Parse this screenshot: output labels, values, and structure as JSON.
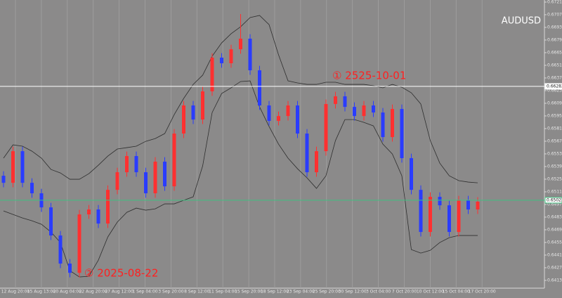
{
  "chart_data": {
    "type": "candlestick",
    "title": "AUDUSD",
    "up_color": "#ff3030",
    "down_color": "#2a3cff",
    "band_color": "#2e2e2e",
    "grid": true,
    "ylim": [
      0.64049,
      0.67238
    ],
    "yticks": [
      0.67215,
      0.67075,
      0.66935,
      0.66795,
      0.66655,
      0.66515,
      0.66375,
      0.66235,
      0.66095,
      0.65955,
      0.65815,
      0.65675,
      0.65535,
      0.65395,
      0.65255,
      0.65115,
      0.64975,
      0.64835,
      0.64695,
      0.64555,
      0.64415,
      0.64275,
      0.64135
    ],
    "x_labels": [
      "12 Aug 20:00",
      "15 Aug 13:00",
      "20 Aug 04:00",
      "22 Aug 20:00",
      "27 Aug 12:00",
      "1 Sep 04:00",
      "3 Sep 20:00",
      "8 Sep 12:00",
      "11 Sep 04:00",
      "15 Sep 20:00",
      "18 Sep 12:00",
      "23 Sep 04:00",
      "25 Sep 20:00",
      "30 Sep 12:00",
      "3 Oct 04:00",
      "7 Oct 20:00",
      "10 Oct 12:00",
      "15 Oct 04:00",
      "17 Oct 20:00"
    ],
    "open": [
      0.65293,
      0.65215,
      0.65565,
      0.65215,
      0.65099,
      0.64943,
      0.64632,
      0.64321,
      0.64219,
      0.64865,
      0.6492,
      0.64764,
      0.65137,
      0.65332,
      0.65511,
      0.65332,
      0.65099,
      0.65449,
      0.65176,
      0.6576,
      0.66071,
      0.65915,
      0.66227,
      0.666,
      0.66538,
      0.66693,
      0.6681,
      0.6646,
      0.66071,
      0.659,
      0.65954,
      0.66071,
      0.6576,
      0.65332,
      0.65565,
      0.66087,
      0.66172,
      0.66055,
      0.65954,
      0.66071,
      0.65993,
      0.65721,
      0.66032,
      0.65488,
      0.65137,
      0.64671,
      0.6506,
      0.64966,
      0.64671,
      0.65021,
      0.6492
    ],
    "high": [
      0.65343,
      0.65615,
      0.65615,
      0.65265,
      0.65149,
      0.64993,
      0.64682,
      0.64371,
      0.64915,
      0.6497,
      0.6497,
      0.65187,
      0.65382,
      0.65561,
      0.65561,
      0.65382,
      0.65499,
      0.65499,
      0.6581,
      0.66121,
      0.66121,
      0.66277,
      0.6665,
      0.6665,
      0.66743,
      0.67082,
      0.6686,
      0.6651,
      0.66121,
      0.66004,
      0.66121,
      0.66121,
      0.6581,
      0.65615,
      0.66137,
      0.66222,
      0.66222,
      0.66105,
      0.66121,
      0.66121,
      0.66043,
      0.66082,
      0.66082,
      0.65538,
      0.65187,
      0.6511,
      0.6511,
      0.65016,
      0.65071,
      0.65071,
      0.65056
    ],
    "low": [
      0.65165,
      0.65165,
      0.65165,
      0.65049,
      0.64893,
      0.64582,
      0.64271,
      0.64169,
      0.64169,
      0.64815,
      0.64714,
      0.64714,
      0.65087,
      0.65282,
      0.65282,
      0.65049,
      0.65049,
      0.65126,
      0.65126,
      0.6571,
      0.65865,
      0.65865,
      0.66177,
      0.66488,
      0.66488,
      0.66643,
      0.6641,
      0.66021,
      0.6585,
      0.6585,
      0.65904,
      0.6571,
      0.65282,
      0.65282,
      0.65515,
      0.66037,
      0.66005,
      0.65904,
      0.65904,
      0.65943,
      0.65671,
      0.65671,
      0.65438,
      0.65087,
      0.64621,
      0.64621,
      0.64916,
      0.64621,
      0.64621,
      0.6487,
      0.6487
    ],
    "close": [
      0.65215,
      0.65565,
      0.65215,
      0.65099,
      0.64943,
      0.64632,
      0.64321,
      0.64219,
      0.64865,
      0.6492,
      0.64764,
      0.65137,
      0.65332,
      0.65511,
      0.65332,
      0.65099,
      0.65449,
      0.65176,
      0.6576,
      0.66071,
      0.65915,
      0.66227,
      0.666,
      0.66538,
      0.66693,
      0.6681,
      0.6646,
      0.66071,
      0.659,
      0.65954,
      0.66071,
      0.6576,
      0.65332,
      0.65565,
      0.66087,
      0.66172,
      0.66055,
      0.65954,
      0.66071,
      0.65993,
      0.65721,
      0.66032,
      0.65488,
      0.65137,
      0.64671,
      0.6506,
      0.64966,
      0.64671,
      0.65021,
      0.6492,
      0.65006
    ],
    "bands": [
      {
        "values": [
          0.65488,
          0.65635,
          0.6562,
          0.65565,
          0.65488,
          0.65363,
          0.65324,
          0.65254,
          0.65254,
          0.65316,
          0.6541,
          0.65511,
          0.65589,
          0.65604,
          0.6562,
          0.65674,
          0.65705,
          0.6576,
          0.6597,
          0.66149,
          0.66304,
          0.66406,
          0.66616,
          0.66763,
          0.66865,
          0.66942,
          0.67044,
          0.67067,
          0.66966,
          0.66631,
          0.66343,
          0.6632,
          0.66304,
          0.66304,
          0.66328,
          0.66328,
          0.66304,
          0.66304,
          0.66304,
          0.66289,
          0.66266,
          0.66304,
          0.66273,
          0.66211,
          0.66087,
          0.65682,
          0.65433,
          0.65293,
          0.65239,
          0.65223,
          0.65215
        ]
      },
      {
        "values": [
          0.64904,
          0.64865,
          0.64826,
          0.64795,
          0.64756,
          0.64671,
          0.64554,
          0.64243,
          0.64173,
          0.6418,
          0.64359,
          0.64616,
          0.6478,
          0.64888,
          0.64935,
          0.64912,
          0.64927,
          0.64982,
          0.64982,
          0.65021,
          0.6506,
          0.65402,
          0.65993,
          0.66203,
          0.66266,
          0.66336,
          0.66343,
          0.66055,
          0.65838,
          0.65643,
          0.65488,
          0.65371,
          0.6527,
          0.65153,
          0.65293,
          0.65682,
          0.65915,
          0.65915,
          0.65884,
          0.65845,
          0.65643,
          0.65534,
          0.65293,
          0.64476,
          0.64437,
          0.64468,
          0.64554,
          0.64608,
          0.64632,
          0.64632,
          0.64632
        ]
      }
    ],
    "hlines": [
      {
        "value": 0.66282,
        "color": "#ffffff"
      },
      {
        "value": 0.65022,
        "color": "#3fbf7f"
      }
    ],
    "annotations": [
      {
        "text": "① 2525-10-01",
        "color": "#ff2020"
      },
      {
        "text": "② 2025-08-22",
        "color": "#ff2020"
      }
    ]
  }
}
